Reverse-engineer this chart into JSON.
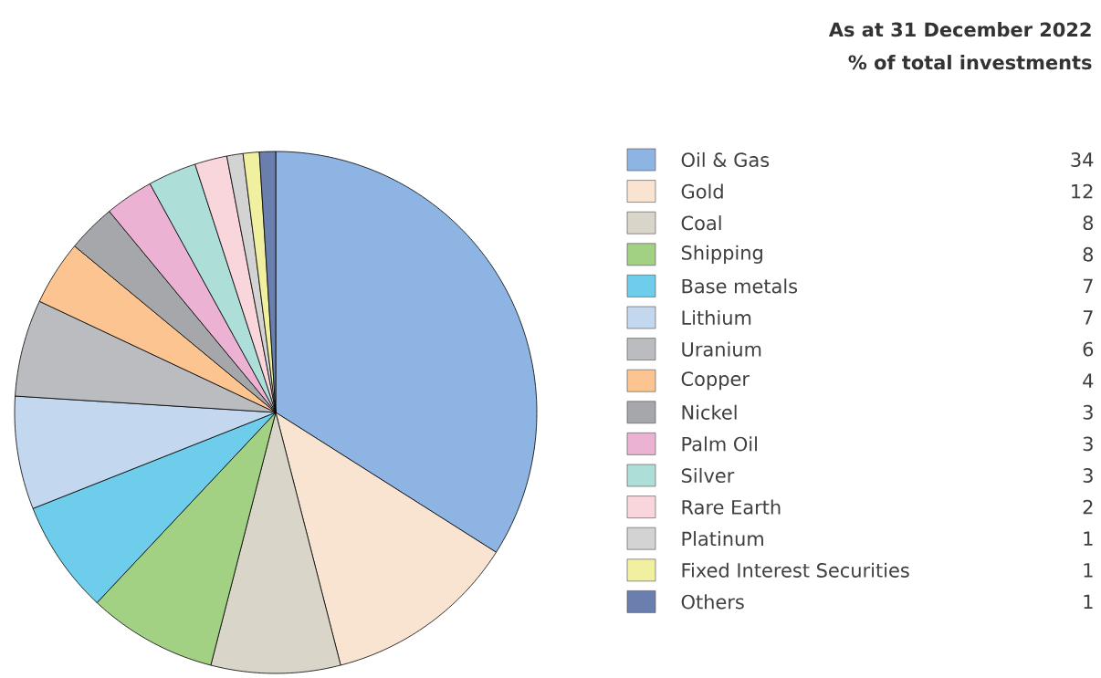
{
  "chart_data": {
    "type": "pie",
    "title": "As at 31 December 2022",
    "subtitle": "% of total investments",
    "categories": [
      "Oil & Gas",
      "Gold",
      "Coal",
      "Shipping",
      "Base metals",
      "Lithium",
      "Uranium",
      "Copper",
      "Nickel",
      "Palm Oil",
      "Silver",
      "Rare Earth",
      "Platinum",
      "Fixed Interest Securities",
      "Others"
    ],
    "values": [
      34,
      12,
      8,
      8,
      7,
      7,
      6,
      4,
      3,
      3,
      3,
      2,
      1,
      1,
      1
    ],
    "colors": [
      "#8db4e2",
      "#f9e4d2",
      "#d9d5c9",
      "#a3d183",
      "#6ecdeb",
      "#c3d7ee",
      "#bbbcc0",
      "#fbc490",
      "#a6a7ab",
      "#ecb2d3",
      "#addfd8",
      "#f9d6dc",
      "#d3d3d3",
      "#f0f0a0",
      "#6b7fae"
    ],
    "data_labels": true,
    "legend": "right"
  }
}
